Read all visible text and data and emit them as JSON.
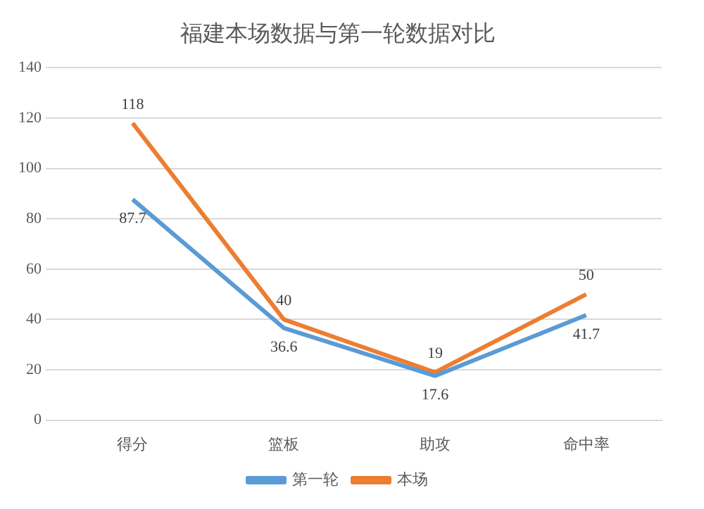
{
  "chart_data": {
    "type": "line",
    "title": "福建本场数据与第一轮数据对比",
    "categories": [
      "得分",
      "篮板",
      "助攻",
      "命中率"
    ],
    "series": [
      {
        "name": "第一轮",
        "color": "#5b9bd5",
        "values": [
          87.7,
          36.6,
          17.6,
          41.7
        ]
      },
      {
        "name": "本场",
        "color": "#ed7d31",
        "values": [
          118,
          40,
          19,
          50
        ]
      }
    ],
    "ylim": [
      0,
      140
    ],
    "yticks": [
      0,
      20,
      40,
      60,
      80,
      100,
      120,
      140
    ],
    "grid": "y",
    "legend": "bottom",
    "marker": "none",
    "data_labels": true
  }
}
